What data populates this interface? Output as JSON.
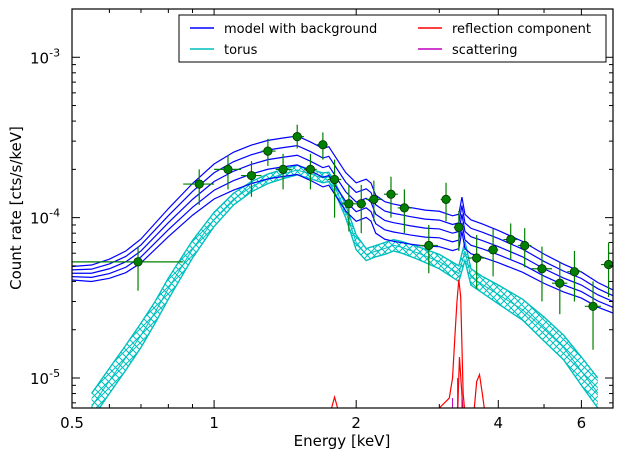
{
  "chart_data": {
    "type": "line",
    "title": "",
    "xlabel": "Energy [keV]",
    "ylabel": "Count rate [cts/s/keV]",
    "xscale": "log",
    "yscale": "log",
    "xlim": [
      0.5,
      7.0
    ],
    "ylim": [
      6.5e-06,
      0.002
    ],
    "grid": false,
    "legend_placement": "top-right",
    "legend": {
      "columns": 2,
      "entries": [
        {
          "label": "model with background",
          "color": "#0000ff"
        },
        {
          "label": "reflection component",
          "color": "#ff0000"
        },
        {
          "label": "torus",
          "color": "#00bfbf"
        },
        {
          "label": "scattering",
          "color": "#bf00bf"
        }
      ]
    },
    "x_ticks": [
      {
        "value": 0.5,
        "label": "0.5"
      },
      {
        "value": 1,
        "label": "1"
      },
      {
        "value": 2,
        "label": "2"
      },
      {
        "value": 4,
        "label": "4"
      },
      {
        "value": 6,
        "label": "6"
      }
    ],
    "y_ticks": [
      {
        "value": 1e-05,
        "base": "10",
        "exp": "-5"
      },
      {
        "value": 0.0001,
        "base": "10",
        "exp": "-4"
      },
      {
        "value": 0.001,
        "base": "10",
        "exp": "-3"
      }
    ],
    "series": [
      {
        "name": "model with background",
        "color": "#0000ff",
        "style": "band",
        "x": [
          0.5,
          0.55,
          0.6,
          0.65,
          0.7,
          0.8,
          0.9,
          1.0,
          1.1,
          1.2,
          1.3,
          1.4,
          1.5,
          1.6,
          1.7,
          1.75,
          1.8,
          1.9,
          2.0,
          2.1,
          2.15,
          2.2,
          2.3,
          2.4,
          2.5,
          2.6,
          2.8,
          3.0,
          3.2,
          3.3,
          3.35,
          3.4,
          3.5,
          3.7,
          4.0,
          4.5,
          5.0,
          5.5,
          6.0,
          6.5,
          7.0
        ],
        "mid": [
          4.5e-05,
          4.5e-05,
          4.8e-05,
          5.3e-05,
          6.2e-05,
          9.3e-05,
          0.00013,
          0.000168,
          0.000195,
          0.000215,
          0.00023,
          0.000238,
          0.000245,
          0.000225,
          0.000205,
          0.00021,
          0.000185,
          0.000145,
          0.000125,
          0.000132,
          0.000125,
          0.000105,
          9.6e-05,
          9.3e-05,
          9.1e-05,
          8.9e-05,
          8.6e-05,
          8.5e-05,
          8e-05,
          8.2e-05,
          0.000105,
          8.2e-05,
          7.6e-05,
          7.2e-05,
          6.6e-05,
          5.7e-05,
          4.8e-05,
          4.2e-05,
          3.8e-05,
          3.3e-05,
          3e-05
        ],
        "widths": [
          -0.12,
          -0.06,
          0,
          0.06,
          0.12
        ]
      },
      {
        "name": "torus",
        "color": "#00bfbf",
        "style": "hatched-band",
        "x": [
          0.55,
          0.6,
          0.65,
          0.7,
          0.75,
          0.8,
          0.9,
          1.0,
          1.1,
          1.2,
          1.3,
          1.4,
          1.5,
          1.6,
          1.7,
          1.75,
          1.8,
          1.9,
          2.0,
          2.1,
          2.2,
          2.3,
          2.4,
          2.5,
          2.7,
          3.0,
          3.3,
          3.4,
          3.5,
          3.7,
          4.0,
          4.5,
          5.0,
          5.5,
          6.0,
          6.5
        ],
        "lo": [
          5.5e-06,
          8e-06,
          1.12e-05,
          1.55e-05,
          2.2e-05,
          3.1e-05,
          5.6e-05,
          8.8e-05,
          0.00012,
          0.000145,
          0.000163,
          0.000175,
          0.000185,
          0.000175,
          0.000165,
          0.000168,
          0.000145,
          0.0001,
          6.3e-05,
          5.4e-05,
          5.7e-05,
          5.9e-05,
          6.2e-05,
          6e-05,
          5.5e-05,
          4.8e-05,
          4e-05,
          5.4e-05,
          3.8e-05,
          3.4e-05,
          2.9e-05,
          2.3e-05,
          1.7e-05,
          1.3e-05,
          9e-06,
          6.5e-06
        ],
        "hi": [
          8e-06,
          1.15e-05,
          1.6e-05,
          2.2e-05,
          3e-05,
          4.2e-05,
          7.2e-05,
          0.000108,
          0.000142,
          0.000168,
          0.000187,
          0.0002,
          0.000212,
          0.0002,
          0.00019,
          0.000192,
          0.000168,
          0.00012,
          7.8e-05,
          6.4e-05,
          6.7e-05,
          7e-05,
          7.3e-05,
          7.1e-05,
          6.6e-05,
          5.9e-05,
          5e-05,
          7.1e-05,
          4.8e-05,
          4.3e-05,
          3.8e-05,
          3.1e-05,
          2.4e-05,
          1.85e-05,
          1.35e-05,
          1e-05
        ]
      },
      {
        "name": "reflection component",
        "color": "#ff0000",
        "style": "lines",
        "lines": [
          {
            "x": [
              1.76,
              1.8,
              1.84
            ],
            "y": [
              6e-06,
              7.6e-06,
              6e-06
            ]
          },
          {
            "x": [
              3.0,
              3.15,
              3.2,
              3.24,
              3.27,
              3.3,
              3.33,
              3.35,
              3.37,
              3.4
            ],
            "y": [
              6.5e-06,
              7.5e-06,
              1e-05,
              1.9e-05,
              3e-05,
              4.1e-05,
              3.2e-05,
              1.6e-05,
              8e-06,
              6e-06
            ]
          },
          {
            "x": [
              3.28,
              3.31,
              3.34,
              3.37
            ],
            "y": [
              6e-06,
              1.35e-05,
              9e-06,
              6e-06
            ]
          },
          {
            "x": [
              3.55,
              3.6,
              3.65,
              3.7,
              3.75
            ],
            "y": [
              6e-06,
              9.5e-06,
              1.05e-05,
              8e-06,
              6e-06
            ]
          }
        ]
      },
      {
        "name": "scattering",
        "color": "#bf00bf",
        "style": "lines",
        "lines": []
      },
      {
        "name": "data",
        "color": "#008000",
        "style": "errorbar",
        "points": [
          {
            "x": 0.69,
            "y": 5.3e-05,
            "xlo": 0.5,
            "xhi": 0.86,
            "ylo": 3.5e-05,
            "yhi": 6.6e-05
          },
          {
            "x": 0.93,
            "y": 0.000162,
            "xlo": 0.86,
            "xhi": 1.0,
            "ylo": 0.00012,
            "yhi": 0.0002
          },
          {
            "x": 1.07,
            "y": 0.0002,
            "xlo": 1.0,
            "xhi": 1.14,
            "ylo": 0.00015,
            "yhi": 0.000245
          },
          {
            "x": 1.2,
            "y": 0.000183,
            "xlo": 1.14,
            "xhi": 1.26,
            "ylo": 0.000135,
            "yhi": 0.000225
          },
          {
            "x": 1.3,
            "y": 0.00026,
            "xlo": 1.26,
            "xhi": 1.35,
            "ylo": 0.00021,
            "yhi": 0.00031
          },
          {
            "x": 1.4,
            "y": 0.0002,
            "xlo": 1.35,
            "xhi": 1.46,
            "ylo": 0.00015,
            "yhi": 0.00025
          },
          {
            "x": 1.5,
            "y": 0.00032,
            "xlo": 1.46,
            "xhi": 1.55,
            "ylo": 0.00027,
            "yhi": 0.00038
          },
          {
            "x": 1.6,
            "y": 0.0002,
            "xlo": 1.55,
            "xhi": 1.65,
            "ylo": 0.00015,
            "yhi": 0.00025
          },
          {
            "x": 1.7,
            "y": 0.000285,
            "xlo": 1.65,
            "xhi": 1.74,
            "ylo": 0.00023,
            "yhi": 0.00034
          },
          {
            "x": 1.8,
            "y": 0.000173,
            "xlo": 1.74,
            "xhi": 1.86,
            "ylo": 0.0001,
            "yhi": 0.00023
          },
          {
            "x": 1.93,
            "y": 0.000122,
            "xlo": 1.86,
            "xhi": 1.99,
            "ylo": 8.2e-05,
            "yhi": 0.00016
          },
          {
            "x": 2.05,
            "y": 0.000122,
            "xlo": 1.99,
            "xhi": 2.1,
            "ylo": 8e-05,
            "yhi": 0.00016
          },
          {
            "x": 2.18,
            "y": 0.00013,
            "xlo": 2.1,
            "xhi": 2.26,
            "ylo": 9.5e-05,
            "yhi": 0.00017
          },
          {
            "x": 2.37,
            "y": 0.00014,
            "xlo": 2.29,
            "xhi": 2.45,
            "ylo": 0.0001,
            "yhi": 0.00018
          },
          {
            "x": 2.53,
            "y": 0.000115,
            "xlo": 2.45,
            "xhi": 2.62,
            "ylo": 8e-05,
            "yhi": 0.00015
          },
          {
            "x": 2.85,
            "y": 6.7e-05,
            "xlo": 2.72,
            "xhi": 2.98,
            "ylo": 4.5e-05,
            "yhi": 9e-05
          },
          {
            "x": 3.1,
            "y": 0.00013,
            "xlo": 3.02,
            "xhi": 3.18,
            "ylo": 9.5e-05,
            "yhi": 0.000165
          },
          {
            "x": 3.3,
            "y": 8.7e-05,
            "xlo": 3.22,
            "xhi": 3.38,
            "ylo": 6.2e-05,
            "yhi": 0.00011
          },
          {
            "x": 3.6,
            "y": 5.6e-05,
            "xlo": 3.45,
            "xhi": 3.75,
            "ylo": 3.6e-05,
            "yhi": 7.8e-05
          },
          {
            "x": 3.9,
            "y": 6.3e-05,
            "xlo": 3.8,
            "xhi": 4.0,
            "ylo": 4.3e-05,
            "yhi": 8.5e-05
          },
          {
            "x": 4.25,
            "y": 7.3e-05,
            "xlo": 4.1,
            "xhi": 4.4,
            "ylo": 5.5e-05,
            "yhi": 9.2e-05
          },
          {
            "x": 4.55,
            "y": 6.7e-05,
            "xlo": 4.4,
            "xhi": 4.7,
            "ylo": 4.9e-05,
            "yhi": 8.6e-05
          },
          {
            "x": 4.95,
            "y": 4.8e-05,
            "xlo": 4.7,
            "xhi": 5.2,
            "ylo": 3e-05,
            "yhi": 6.6e-05
          },
          {
            "x": 5.4,
            "y": 3.9e-05,
            "xlo": 5.2,
            "xhi": 5.6,
            "ylo": 2.5e-05,
            "yhi": 5.3e-05
          },
          {
            "x": 5.8,
            "y": 4.6e-05,
            "xlo": 5.6,
            "xhi": 6.0,
            "ylo": 3e-05,
            "yhi": 6.2e-05
          },
          {
            "x": 6.35,
            "y": 2.8e-05,
            "xlo": 6.1,
            "xhi": 6.6,
            "ylo": 1.5e-05,
            "yhi": 4e-05
          },
          {
            "x": 6.85,
            "y": 5.1e-05,
            "xlo": 6.6,
            "xhi": 7.0,
            "ylo": 3.2e-05,
            "yhi": 7e-05
          }
        ]
      }
    ]
  }
}
